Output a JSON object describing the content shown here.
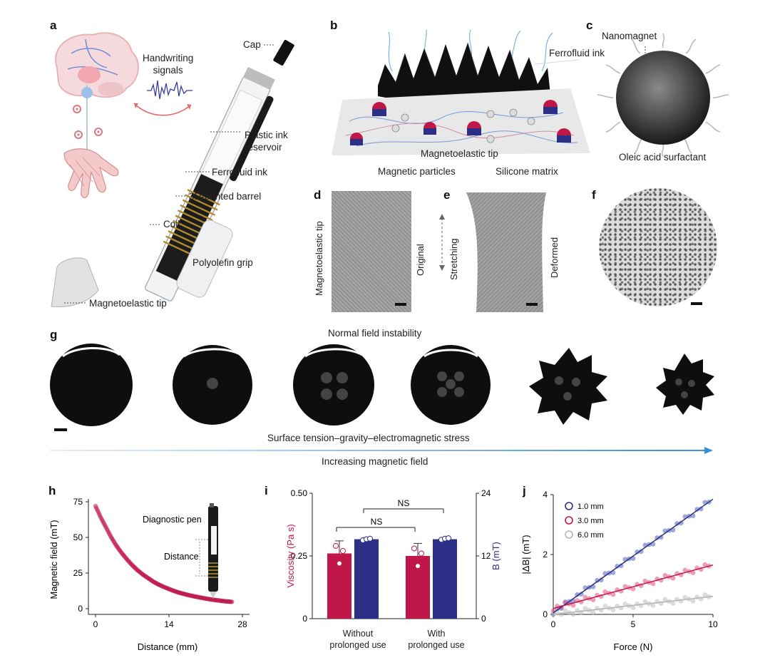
{
  "panels": {
    "a": {
      "label": "a",
      "handwriting": "Handwriting\nsignals",
      "callouts": [
        "Cap",
        "Plastic ink\nreservoir",
        "Ferrofluid ink",
        "3D-printed barrel",
        "Coil",
        "Polyolefin grip",
        "Magnetoelastic tip"
      ]
    },
    "b": {
      "label": "b",
      "ferrofluid_ink": "Ferrofluid ink",
      "tip": "Magnetoelastic tip",
      "legend_particles": "Magnetic particles",
      "legend_matrix": "Silicone matrix"
    },
    "c": {
      "label": "c",
      "nanomagnet": "Nanomagnet",
      "surfactant": "Oleic acid surfactant"
    },
    "d": {
      "label": "d",
      "side": "Magnetoelastic tip",
      "state": "Original"
    },
    "e": {
      "label": "e",
      "arrow": "Stretching",
      "state": "Deformed"
    },
    "f": {
      "label": "f"
    },
    "g": {
      "label": "g",
      "top": "Normal field instability",
      "bottom": "Surface tension–gravity–electromagnetic stress",
      "arrow": "Increasing magnetic field"
    },
    "h": {
      "label": "h",
      "pen_label": "Diagnostic pen",
      "distance_label": "Distance"
    },
    "i": {
      "label": "i"
    },
    "j": {
      "label": "j"
    }
  },
  "colors": {
    "crimson": "#c0174a",
    "navy": "#2b2f86",
    "blue_series": "#5160b5",
    "pink_series": "#d8537c",
    "grey_series": "#bdbdbd",
    "arrow_gradient_end": "#3a8ed8"
  },
  "chart_data": [
    {
      "id": "h",
      "type": "scatter",
      "xlabel": "Distance (mm)",
      "ylabel": "Magnetic field (mT)",
      "xlim": [
        0,
        28
      ],
      "ylim": [
        0,
        75
      ],
      "xticks": [
        0,
        14,
        28
      ],
      "yticks": [
        0,
        25,
        50,
        75
      ],
      "series": [
        {
          "x": [
            0,
            1,
            2,
            3,
            4,
            5,
            6,
            7,
            8,
            9,
            10,
            11,
            12,
            13,
            14,
            15,
            16,
            17,
            18,
            19,
            20,
            21,
            22,
            23,
            24,
            25,
            26
          ],
          "values": [
            72,
            64,
            57,
            50,
            44,
            39,
            34.5,
            30.5,
            27,
            24,
            21.5,
            19,
            17,
            15.3,
            13.8,
            12.4,
            11.2,
            10.2,
            9.3,
            8.5,
            7.8,
            7.1,
            6.5,
            6,
            5.5,
            5.1,
            4.8
          ]
        }
      ]
    },
    {
      "id": "i",
      "type": "bar",
      "categories": [
        "Without\nprolonged use",
        "With\nprolonged use"
      ],
      "ylabel_left": "Viscosity (Pa s)",
      "ylabel_right": "B (mT)",
      "ylim_left": [
        0,
        0.5
      ],
      "ylim_right": [
        0,
        24
      ],
      "yticks_left": [
        "0",
        "0.25",
        "0.50"
      ],
      "yticks_right": [
        "0",
        "12",
        "24"
      ],
      "series": [
        {
          "name": "Viscosity (Pa s)",
          "axis": "left",
          "values": [
            0.26,
            0.25
          ],
          "errors": [
            0.05,
            0.05
          ],
          "points": [
            [
              0.29,
              0.22,
              0.27
            ],
            [
              0.28,
              0.21,
              0.26
            ]
          ]
        },
        {
          "name": "B (mT)",
          "axis": "right",
          "values": [
            15.2,
            15.2
          ],
          "errors": [
            0.3,
            0.3
          ],
          "points": [
            [
              15.0,
              15.2,
              15.3
            ],
            [
              15.1,
              15.3,
              15.4
            ]
          ]
        }
      ],
      "annotations": [
        "NS",
        "NS"
      ]
    },
    {
      "id": "j",
      "type": "scatter",
      "xlabel": "Force (N)",
      "ylabel": "|ΔB| (mT)",
      "xlim": [
        0,
        10
      ],
      "ylim": [
        0,
        4
      ],
      "xticks": [
        0,
        5,
        10
      ],
      "yticks": [
        0,
        2,
        4
      ],
      "legend_position": "top-left",
      "series": [
        {
          "name": "1.0 mm",
          "slope": 0.38,
          "intercept": 0.05,
          "x": [
            0,
            1,
            2,
            3,
            4,
            5,
            6,
            7,
            8,
            9,
            10
          ],
          "values": [
            0.05,
            0.43,
            0.81,
            1.19,
            1.57,
            1.95,
            2.33,
            2.71,
            3.09,
            3.47,
            3.85
          ]
        },
        {
          "name": "3.0 mm",
          "slope": 0.145,
          "intercept": 0.2,
          "x": [
            0,
            1,
            2,
            3,
            4,
            5,
            6,
            7,
            8,
            9,
            10
          ],
          "values": [
            0.2,
            0.35,
            0.49,
            0.64,
            0.78,
            0.93,
            1.07,
            1.22,
            1.36,
            1.51,
            1.65
          ]
        },
        {
          "name": "6.0 mm",
          "slope": 0.06,
          "intercept": 0.0,
          "x": [
            0,
            1,
            2,
            3,
            4,
            5,
            6,
            7,
            8,
            9,
            10
          ],
          "values": [
            0,
            0.06,
            0.12,
            0.18,
            0.24,
            0.3,
            0.36,
            0.42,
            0.48,
            0.54,
            0.6
          ]
        }
      ]
    }
  ]
}
